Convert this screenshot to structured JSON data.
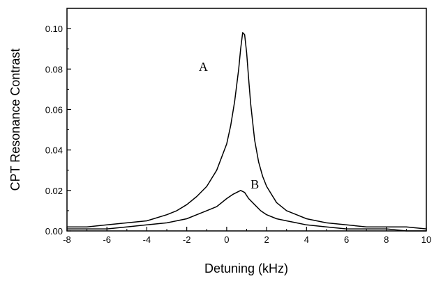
{
  "chart_data": {
    "type": "line",
    "title": "",
    "xlabel": "Detuning (kHz)",
    "ylabel": "CPT Resonance Contrast",
    "xlim": [
      -8,
      10
    ],
    "ylim": [
      0,
      0.11
    ],
    "xticks": [
      -8,
      -6,
      -4,
      -2,
      0,
      2,
      4,
      6,
      8,
      10
    ],
    "xtick_labels": [
      "-8",
      "-6",
      "-4",
      "-2",
      "0",
      "2",
      "4",
      "6",
      "8",
      "10"
    ],
    "yticks": [
      0.0,
      0.02,
      0.04,
      0.06,
      0.08,
      0.1
    ],
    "ytick_labels": [
      "0.00",
      "0.02",
      "0.04",
      "0.06",
      "0.08",
      "0.10"
    ],
    "grid": false,
    "legend": "none",
    "line_color": "#000000",
    "series": [
      {
        "label": "A",
        "label_at": [
          -1.4,
          0.079
        ],
        "x": [
          -8,
          -7,
          -6,
          -5,
          -4,
          -3,
          -2.5,
          -2,
          -1.5,
          -1,
          -0.5,
          0,
          0.2,
          0.4,
          0.6,
          0.7,
          0.8,
          0.9,
          1.0,
          1.1,
          1.2,
          1.4,
          1.6,
          1.8,
          2,
          2.5,
          3,
          3.5,
          4,
          5,
          6,
          7,
          8,
          9,
          10
        ],
        "y": [
          0.002,
          0.002,
          0.003,
          0.004,
          0.005,
          0.008,
          0.01,
          0.013,
          0.017,
          0.022,
          0.03,
          0.043,
          0.052,
          0.064,
          0.08,
          0.09,
          0.098,
          0.097,
          0.088,
          0.075,
          0.063,
          0.045,
          0.034,
          0.027,
          0.022,
          0.014,
          0.01,
          0.008,
          0.006,
          0.004,
          0.003,
          0.002,
          0.002,
          0.002,
          0.001
        ]
      },
      {
        "label": "B",
        "label_at": [
          1.2,
          0.021
        ],
        "x": [
          -8,
          -7,
          -6,
          -5,
          -4,
          -3,
          -2,
          -1.5,
          -1,
          -0.5,
          0,
          0.3,
          0.5,
          0.7,
          0.9,
          1.1,
          1.4,
          1.7,
          2,
          2.5,
          3,
          3.5,
          4,
          5,
          6,
          7,
          8,
          9,
          10
        ],
        "y": [
          0.001,
          0.001,
          0.001,
          0.002,
          0.003,
          0.004,
          0.006,
          0.008,
          0.01,
          0.012,
          0.016,
          0.018,
          0.019,
          0.02,
          0.019,
          0.016,
          0.013,
          0.01,
          0.008,
          0.006,
          0.005,
          0.004,
          0.003,
          0.002,
          0.001,
          0.001,
          0.001,
          0.0,
          0.0
        ]
      }
    ]
  }
}
